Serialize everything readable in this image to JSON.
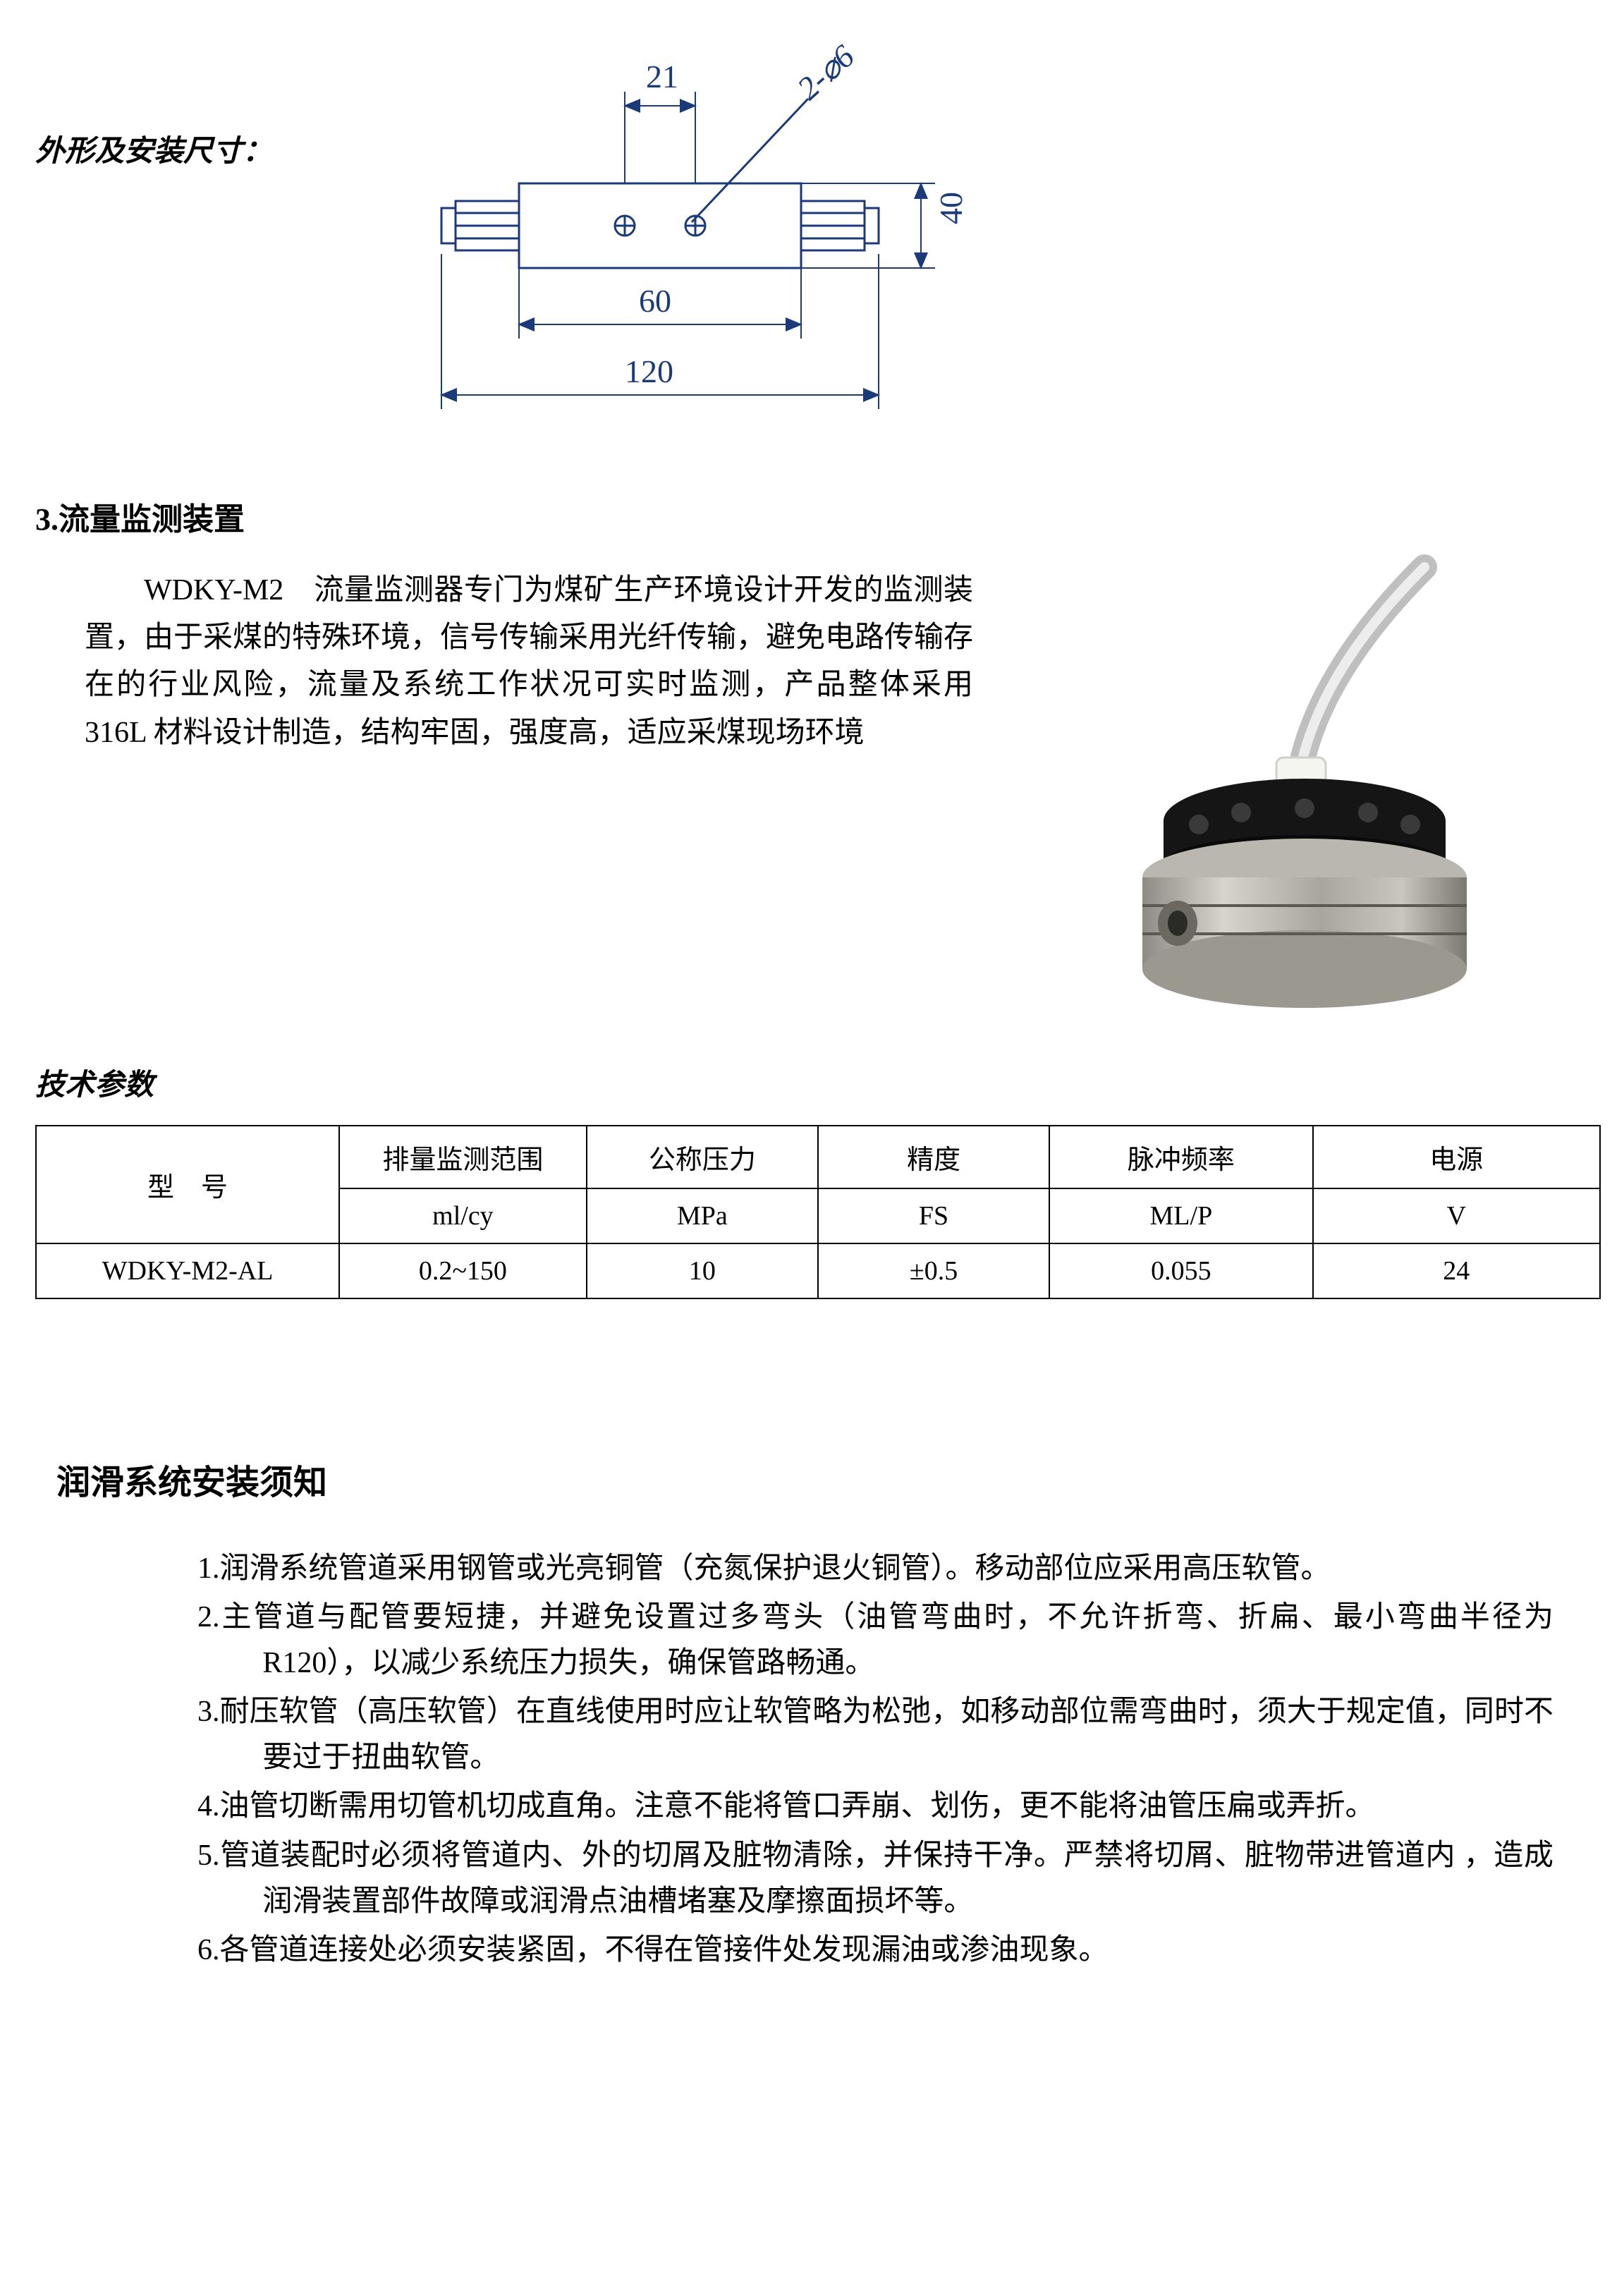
{
  "dimTitle": "外形及安装尺寸：",
  "diagram": {
    "color": "#1a3a7a",
    "labels": {
      "d21": "21",
      "d60": "60",
      "d120": "120",
      "d40": "40",
      "holes": "2-⌀6"
    }
  },
  "section3": {
    "heading": "3.流量监测装置",
    "paragraph": "WDKY-M2　流量监测器专门为煤矿生产环境设计开发的监测装置，由于采煤的特殊环境，信号传输采用光纤传输，避免电路传输存在的行业风险，流量及系统工作状况可实时监测，产品整体采用 316L 材料设计制造，结构牢固，强度高，适应采煤现场环境"
  },
  "techParamsTitle": "技术参数",
  "table": {
    "headerModel": "型　号",
    "cols": [
      {
        "name": "排量监测范围",
        "unit": "ml/cy"
      },
      {
        "name": "公称压力",
        "unit": "MPa"
      },
      {
        "name": "精度",
        "unit": "FS"
      },
      {
        "name": "脉冲频率",
        "unit": "ML/P"
      },
      {
        "name": "电源",
        "unit": "V"
      }
    ],
    "row": {
      "model": "WDKY-M2-AL",
      "values": [
        "0.2~150",
        "10",
        "±0.5",
        "0.055",
        "24"
      ]
    },
    "colWidths": [
      "380px",
      "310px",
      "290px",
      "290px",
      "330px",
      "360px"
    ]
  },
  "install": {
    "title": "润滑系统安装须知",
    "items": [
      "润滑系统管道采用钢管或光亮铜管（充氮保护退火铜管）。移动部位应采用高压软管。",
      "主管道与配管要短捷，并避免设置过多弯头（油管弯曲时，不允许折弯、折扁、最小弯曲半径为 R120），以减少系统压力损失，确保管路畅通。",
      "耐压软管（高压软管）在直线使用时应让软管略为松弛，如移动部位需弯曲时，须大于规定值，同时不要过于扭曲软管。",
      "油管切断需用切管机切成直角。注意不能将管口弄崩、划伤，更不能将油管压扁或弄折。",
      "管道装配时必须将管道内、外的切屑及脏物清除，并保持干净。严禁将切屑、脏物带进管道内 ，造成润滑装置部件故障或润滑点油槽堵塞及摩擦面损坏等。",
      "各管道连接处必须安装紧固，不得在管接件处发现漏油或渗油现象。"
    ]
  }
}
